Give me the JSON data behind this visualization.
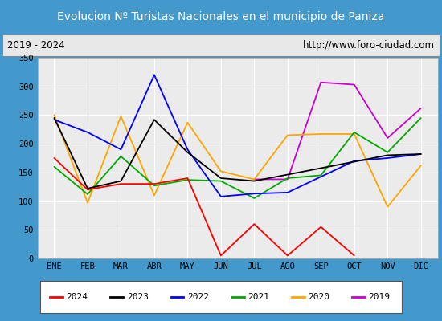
{
  "title": "Evolucion Nº Turistas Nacionales en el municipio de Paniza",
  "subtitle_left": "2019 - 2024",
  "subtitle_right": "http://www.foro-ciudad.com",
  "months": [
    "ENE",
    "FEB",
    "MAR",
    "ABR",
    "MAY",
    "JUN",
    "JUL",
    "AGO",
    "SEP",
    "OCT",
    "NOV",
    "DIC"
  ],
  "series": {
    "2024": [
      175,
      120,
      130,
      130,
      140,
      5,
      60,
      5,
      55,
      5,
      null,
      null
    ],
    "2023": [
      245,
      122,
      135,
      242,
      185,
      140,
      135,
      null,
      null,
      null,
      180,
      182
    ],
    "2022": [
      242,
      220,
      190,
      320,
      190,
      108,
      113,
      115,
      null,
      170,
      175,
      182
    ],
    "2021": [
      160,
      112,
      178,
      127,
      137,
      135,
      105,
      140,
      145,
      220,
      185,
      245
    ],
    "2020": [
      250,
      97,
      248,
      110,
      237,
      152,
      138,
      215,
      217,
      217,
      90,
      162
    ],
    "2019": [
      null,
      null,
      null,
      null,
      null,
      null,
      138,
      138,
      307,
      303,
      210,
      262
    ]
  },
  "colors": {
    "2024": "#ff0000",
    "2023": "#000000",
    "2022": "#0000ff",
    "2021": "#00aa00",
    "2020": "#ffa500",
    "2019": "#cc00cc"
  },
  "ylim": [
    0,
    350
  ],
  "yticks": [
    0,
    50,
    100,
    150,
    200,
    250,
    300,
    350
  ],
  "title_bg": "#4499cc",
  "title_color": "#ffffff",
  "subtitle_bg": "#e8e8e8",
  "plot_bg": "#ebebeb",
  "grid_color": "#ffffff",
  "border_color": "#4499cc",
  "legend_items": [
    "2024",
    "2023",
    "2022",
    "2021",
    "2020",
    "2019"
  ]
}
